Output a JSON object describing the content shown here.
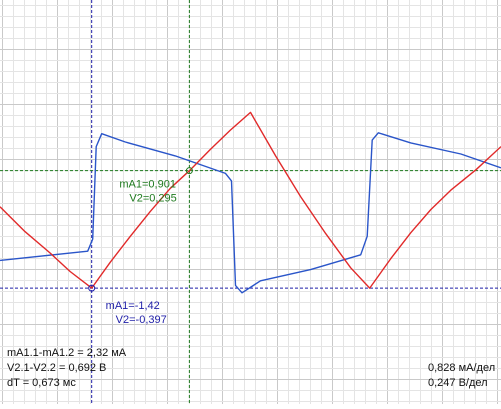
{
  "chart_data": {
    "type": "line",
    "grid": true,
    "x_range": [
      0,
      100
    ],
    "y_range": [
      -1,
      1
    ],
    "series": [
      {
        "color": "#2a55c9",
        "points": [
          [
            0,
            -0.68
          ],
          [
            17.5,
            -0.58
          ],
          [
            18.5,
            -0.45
          ],
          [
            19.2,
            0.55
          ],
          [
            20.3,
            0.69
          ],
          [
            25,
            0.6
          ],
          [
            35,
            0.45
          ],
          [
            45,
            0.26
          ],
          [
            46.2,
            0.18
          ],
          [
            47,
            -0.95
          ],
          [
            48.3,
            -1.03
          ],
          [
            52,
            -0.9
          ],
          [
            62,
            -0.78
          ],
          [
            72,
            -0.62
          ],
          [
            73.3,
            -0.42
          ],
          [
            74.3,
            0.62
          ],
          [
            75.5,
            0.7
          ],
          [
            82,
            0.59
          ],
          [
            92,
            0.47
          ],
          [
            100,
            0.32
          ]
        ]
      },
      {
        "color": "#e12a2a",
        "points": [
          [
            0,
            -0.1
          ],
          [
            5,
            -0.37
          ],
          [
            10,
            -0.6
          ],
          [
            14,
            -0.8
          ],
          [
            18.3,
            -0.98
          ],
          [
            22,
            -0.7
          ],
          [
            26,
            -0.42
          ],
          [
            30,
            -0.15
          ],
          [
            34,
            0.1
          ],
          [
            37.8,
            0.29
          ],
          [
            42,
            0.52
          ],
          [
            46,
            0.73
          ],
          [
            50,
            0.92
          ],
          [
            55,
            0.45
          ],
          [
            60,
            0.01
          ],
          [
            65,
            -0.39
          ],
          [
            70,
            -0.76
          ],
          [
            73.8,
            -0.98
          ],
          [
            78,
            -0.66
          ],
          [
            82,
            -0.38
          ],
          [
            86,
            -0.13
          ],
          [
            90,
            0.08
          ],
          [
            95,
            0.3
          ],
          [
            100,
            0.55
          ]
        ]
      }
    ],
    "cursors": {
      "vertical": [
        {
          "x": 18.3,
          "color": "#1f1fa8"
        },
        {
          "x": 37.8,
          "color": "#1e7a1e"
        }
      ],
      "horizontal": [
        {
          "y": 0.29,
          "color": "#1e7a1e"
        },
        {
          "y": -0.98,
          "color": "#1f1fa8"
        }
      ]
    },
    "annotations": [
      {
        "line1": "mA1=0,901",
        "line2": "V2=0,295",
        "color": "#1e7a1e"
      },
      {
        "line1": "mA1=-1,42",
        "line2": "V2=-0,397",
        "color": "#1f1fa8"
      }
    ]
  },
  "readouts": {
    "delta_current": "mA1.1-mA1.2 = 2,32 мА",
    "delta_voltage": "V2.1-V2.2 = 0,692 В",
    "delta_time": "dT = 0,673 мс",
    "scale_current": "0,828 мА/дел",
    "scale_voltage": "0,247 В/дел"
  }
}
